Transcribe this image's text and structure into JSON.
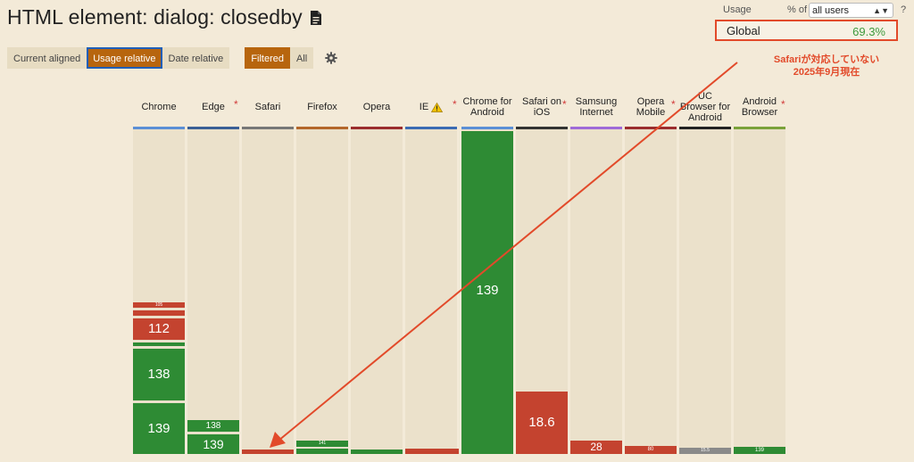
{
  "page_title": "HTML element: dialog: closedby",
  "toolbar": {
    "current_aligned": "Current aligned",
    "usage_relative": "Usage relative",
    "date_relative": "Date relative",
    "filtered": "Filtered",
    "all": "All"
  },
  "usage": {
    "label": "Usage",
    "pct_of": "% of",
    "select_value": "all users",
    "help": "?",
    "global_label": "Global",
    "global_value": "69.3%"
  },
  "annotation": {
    "line1": "Safariが対応していない",
    "line2": "2025年9月現在"
  },
  "colors": {
    "supported": "#2e8b34",
    "unsupported": "#c4432f",
    "partial": "#8a8a8a",
    "accent": "#b7650e",
    "highlight": "#e24a2a"
  },
  "browsers": [
    {
      "name": "Chrome",
      "star": false,
      "color": "#5b8fd6"
    },
    {
      "name": "Edge",
      "star": true,
      "color": "#3a5f96"
    },
    {
      "name": "Safari",
      "star": false,
      "color": "#777777"
    },
    {
      "name": "Firefox",
      "star": false,
      "color": "#b4672a"
    },
    {
      "name": "Opera",
      "star": false,
      "color": "#9b2d2d"
    },
    {
      "name": "IE",
      "star": true,
      "warn": true,
      "color": "#3b6bb3"
    },
    {
      "name": "Chrome for Android",
      "star": false,
      "color": "#5b8fd6"
    },
    {
      "name": "Safari on iOS",
      "star": true,
      "color": "#333333"
    },
    {
      "name": "Samsung Internet",
      "star": false,
      "color": "#9f6ad8"
    },
    {
      "name": "Opera Mobile",
      "star": true,
      "color": "#9b2d2d"
    },
    {
      "name": "UC Browser for Android",
      "star": false,
      "color": "#222222"
    },
    {
      "name": "Android Browser",
      "star": true,
      "color": "#7aa23a"
    }
  ],
  "version_labels": {
    "chrome_small": "105",
    "chrome_112": "112",
    "chrome_138": "138",
    "chrome_139": "139",
    "edge_138": "138",
    "edge_139": "139",
    "firefox_141": "141",
    "chrome_android_139": "139",
    "safari_ios": "18.6",
    "samsung": "28",
    "opera_mobile": "80",
    "uc_browser": "15.5",
    "android_browser": "139"
  }
}
